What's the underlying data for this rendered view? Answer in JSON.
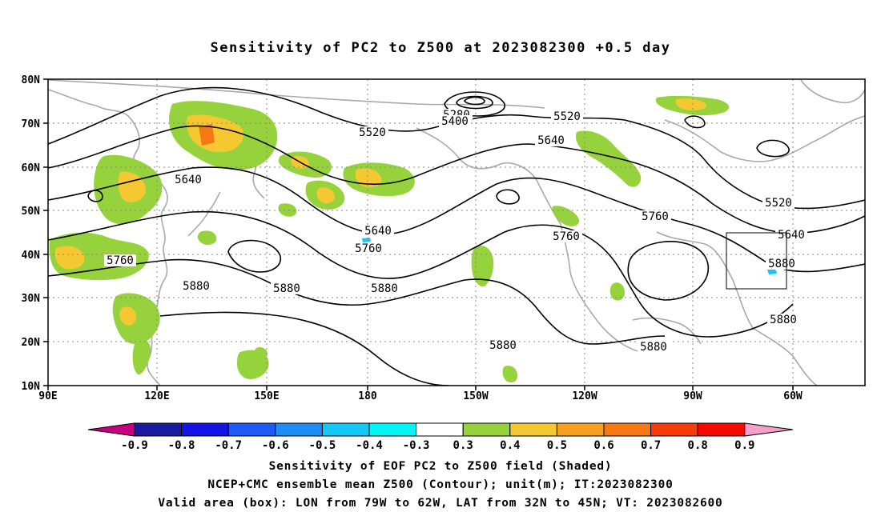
{
  "title": "Sensitivity of PC2 to Z500 at 2023082300 +0.5 day",
  "map": {
    "lat_labels": [
      "80N",
      "70N",
      "60N",
      "50N",
      "40N",
      "30N",
      "20N",
      "10N"
    ],
    "lon_labels": [
      "90E",
      "120E",
      "150E",
      "180",
      "150W",
      "120W",
      "90W",
      "60W"
    ],
    "contour_labels": [
      "5280",
      "5400",
      "5520",
      "5520",
      "5640",
      "5640",
      "5640",
      "5520",
      "5640",
      "5760",
      "5760",
      "5760",
      "5880",
      "5880",
      "5880",
      "5880",
      "5760",
      "5880",
      "5880",
      "5880"
    ],
    "valid_box": {
      "lon_from": "79W",
      "lon_to": "62W",
      "lat_from": "32N",
      "lat_to": "45N"
    }
  },
  "legend": {
    "colors": [
      "#c8007f",
      "#1a1aa0",
      "#1414e6",
      "#1e5af5",
      "#1e8cf5",
      "#14c8f5",
      "#00f5f5",
      "#ffffff",
      "#96d23c",
      "#f5c832",
      "#f5a01e",
      "#f57814",
      "#f53c0a",
      "#f50a00",
      "#f5a0c8"
    ],
    "labels": [
      "-0.9",
      "-0.8",
      "-0.7",
      "-0.6",
      "-0.5",
      "-0.4",
      "-0.3",
      "0.3",
      "0.4",
      "0.5",
      "0.6",
      "0.7",
      "0.8",
      "0.9"
    ]
  },
  "captions": [
    "Sensitivity of EOF PC2 to Z500 field (Shaded)",
    "NCEP+CMC ensemble mean Z500 (Contour); unit(m); IT:2023082300",
    "Valid area (box): LON from 79W to 62W, LAT from 32N to 45N; VT: 2023082600"
  ]
}
